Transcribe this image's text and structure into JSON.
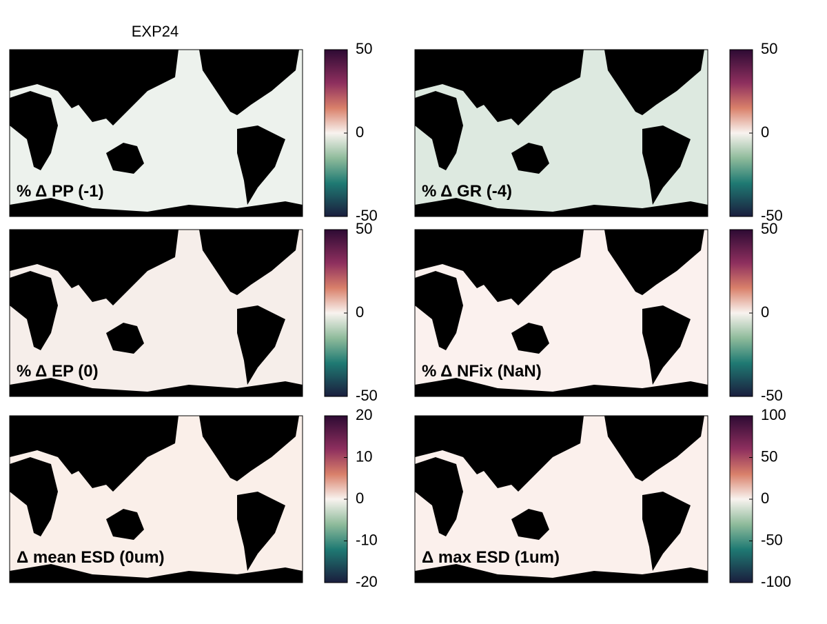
{
  "title": "EXP24",
  "panels": [
    {
      "label": "% Δ PP (-1)",
      "ticks": [
        -50,
        0,
        50
      ]
    },
    {
      "label": "% Δ GR (-4)",
      "ticks": [
        -50,
        0,
        50
      ]
    },
    {
      "label": "% Δ EP (0)",
      "ticks": [
        -50,
        0,
        50
      ]
    },
    {
      "label": "% Δ NFix (NaN)",
      "ticks": [
        -50,
        0,
        50
      ]
    },
    {
      "label": "Δ mean ESD (0um)",
      "ticks": [
        -20,
        -10,
        0,
        10,
        20
      ]
    },
    {
      "label": "Δ max ESD (1um)",
      "ticks": [
        -100,
        -50,
        0,
        50,
        100
      ]
    }
  ]
}
